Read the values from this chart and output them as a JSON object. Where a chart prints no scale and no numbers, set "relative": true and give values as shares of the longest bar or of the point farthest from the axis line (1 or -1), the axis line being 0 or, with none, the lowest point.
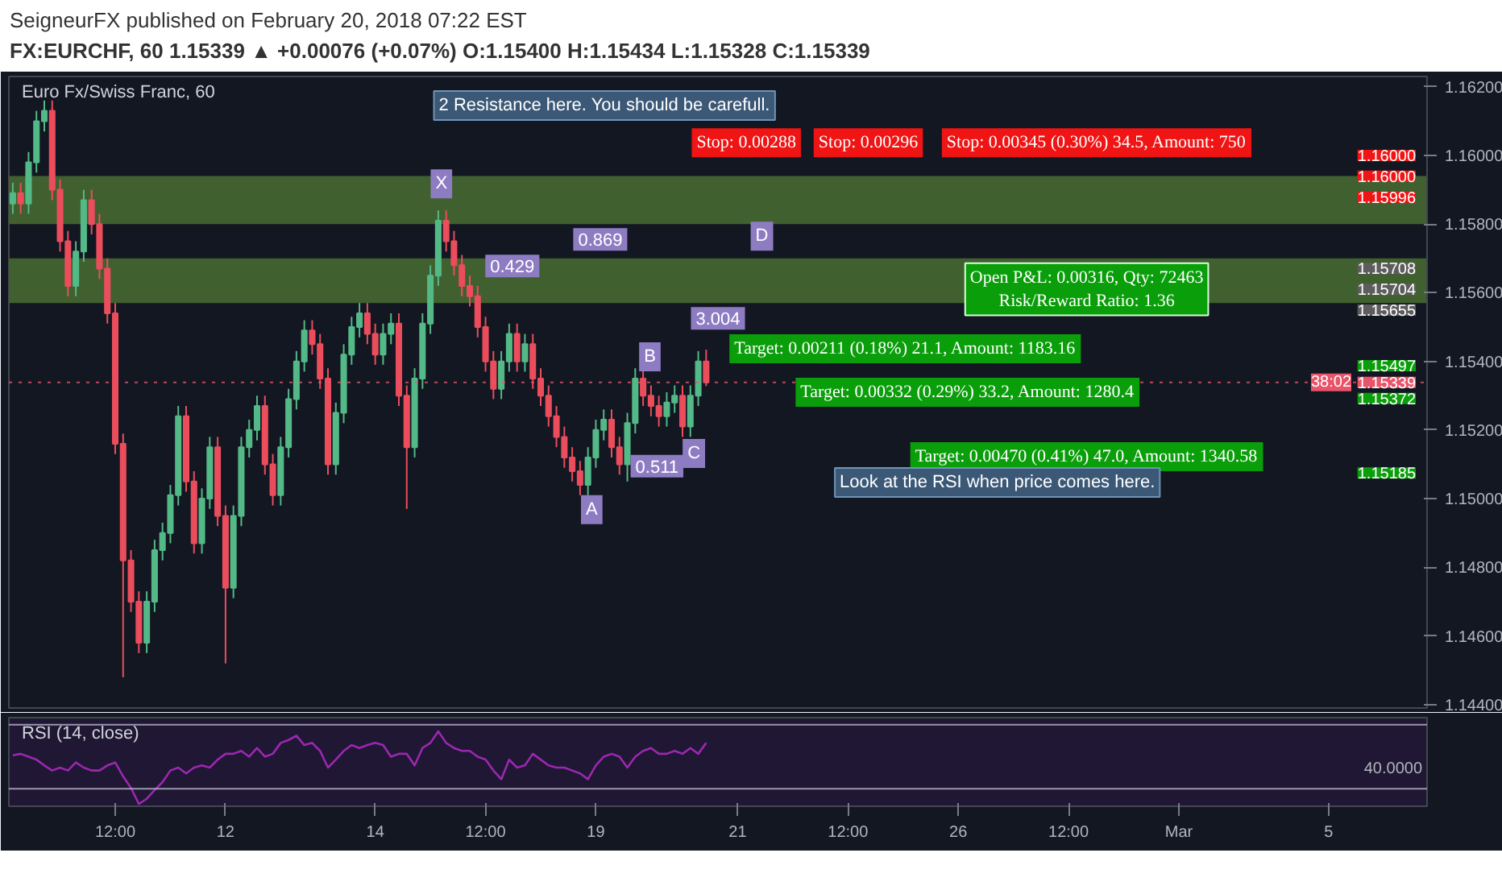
{
  "chart_data": [
    {
      "type": "candlestick",
      "title": "Euro Fx/Swiss Franc, 60",
      "subtitle": "FX:EURCHF, 60 1.15339 ▲ +0.00076 (+0.07%) O:1.15400 H:1.15434 L:1.15328 C:1.15339",
      "categories": [
        null,
        null,
        null,
        null,
        null,
        null,
        null,
        null,
        null,
        null,
        null,
        null,
        null,
        "12:00",
        null,
        null,
        null,
        null,
        null,
        null,
        null,
        null,
        null,
        null,
        null,
        null,
        null,
        "12",
        null,
        null,
        null,
        null,
        null,
        null,
        null,
        null,
        null,
        null,
        null,
        null,
        null,
        null,
        null,
        null,
        null,
        null,
        "14",
        null,
        null,
        null,
        null,
        null,
        null,
        null,
        null,
        null,
        null,
        null,
        null,
        null,
        "12:00",
        null,
        null,
        null,
        null,
        null,
        null,
        null,
        null,
        null,
        null,
        null,
        null,
        null,
        "19",
        null,
        null,
        null,
        null,
        null,
        null,
        null,
        null,
        null,
        null,
        null,
        null,
        null,
        null,
        null,
        null,
        null,
        "21",
        null,
        null,
        null,
        null,
        null,
        null,
        null,
        null,
        null,
        null,
        null,
        null,
        null,
        "12:00",
        null,
        null,
        null,
        null,
        null,
        null,
        null,
        null,
        null,
        null,
        null,
        null,
        null,
        "26",
        null,
        null,
        null,
        null,
        null,
        null,
        null,
        null,
        null,
        null,
        null,
        null,
        null,
        "12:00",
        null,
        null,
        null,
        null,
        null,
        null,
        null,
        null,
        null,
        null,
        null,
        null,
        null,
        "Mar",
        null,
        null,
        null,
        null,
        null,
        null,
        null,
        null,
        null,
        null,
        null,
        null,
        null,
        null,
        null,
        null,
        null,
        null,
        "5",
        null,
        null,
        null,
        null,
        null,
        null,
        null,
        null,
        null,
        null,
        null,
        null
      ],
      "ohlc": [
        [
          1.1586,
          1.1592,
          1.1583,
          1.1589
        ],
        [
          1.1589,
          1.1592,
          1.1583,
          1.1586
        ],
        [
          1.1586,
          1.1601,
          1.1583,
          1.1598
        ],
        [
          1.1598,
          1.1613,
          1.1595,
          1.161
        ],
        [
          1.161,
          1.1616,
          1.1607,
          1.1613
        ],
        [
          1.1613,
          1.1616,
          1.1587,
          1.159
        ],
        [
          1.159,
          1.1593,
          1.1572,
          1.1575
        ],
        [
          1.1575,
          1.1578,
          1.1559,
          1.1562
        ],
        [
          1.1562,
          1.1575,
          1.1559,
          1.1572
        ],
        [
          1.1572,
          1.159,
          1.1569,
          1.1587
        ],
        [
          1.1587,
          1.159,
          1.1577,
          1.158
        ],
        [
          1.158,
          1.1583,
          1.1564,
          1.1567
        ],
        [
          1.1567,
          1.157,
          1.1551,
          1.1554
        ],
        [
          1.1554,
          1.1557,
          1.1513,
          1.1516
        ],
        [
          1.1516,
          1.1519,
          1.1448,
          1.1482
        ],
        [
          1.1482,
          1.1485,
          1.1467,
          1.147
        ],
        [
          1.147,
          1.1473,
          1.1455,
          1.1458
        ],
        [
          1.1458,
          1.1473,
          1.1455,
          1.147
        ],
        [
          1.147,
          1.1488,
          1.1467,
          1.1485
        ],
        [
          1.1485,
          1.1493,
          1.1482,
          1.149
        ],
        [
          1.149,
          1.1504,
          1.1487,
          1.1501
        ],
        [
          1.1501,
          1.1527,
          1.1498,
          1.1524
        ],
        [
          1.1524,
          1.1527,
          1.1502,
          1.1505
        ],
        [
          1.1505,
          1.1508,
          1.1484,
          1.1487
        ],
        [
          1.1487,
          1.1503,
          1.1484,
          1.15
        ],
        [
          1.15,
          1.1518,
          1.1497,
          1.1515
        ],
        [
          1.1515,
          1.1518,
          1.1492,
          1.1495
        ],
        [
          1.1495,
          1.1498,
          1.1452,
          1.1474
        ],
        [
          1.1474,
          1.1498,
          1.1471,
          1.1495
        ],
        [
          1.1495,
          1.1518,
          1.1492,
          1.1515
        ],
        [
          1.1515,
          1.1523,
          1.1512,
          1.152
        ],
        [
          1.152,
          1.153,
          1.1517,
          1.1527
        ],
        [
          1.1527,
          1.153,
          1.1507,
          1.151
        ],
        [
          1.151,
          1.1513,
          1.1498,
          1.1501
        ],
        [
          1.1501,
          1.1518,
          1.1498,
          1.1515
        ],
        [
          1.1515,
          1.1532,
          1.1512,
          1.1529
        ],
        [
          1.1529,
          1.1543,
          1.1526,
          1.154
        ],
        [
          1.154,
          1.1552,
          1.1537,
          1.1549
        ],
        [
          1.1549,
          1.1552,
          1.1542,
          1.1545
        ],
        [
          1.1545,
          1.1548,
          1.1532,
          1.1535
        ],
        [
          1.1535,
          1.1538,
          1.1507,
          1.151
        ],
        [
          1.151,
          1.1528,
          1.1507,
          1.1525
        ],
        [
          1.1525,
          1.1545,
          1.1522,
          1.1542
        ],
        [
          1.1542,
          1.1553,
          1.1539,
          1.155
        ],
        [
          1.155,
          1.1557,
          1.1547,
          1.1554
        ],
        [
          1.1554,
          1.1557,
          1.1545,
          1.1548
        ],
        [
          1.1548,
          1.1551,
          1.1539,
          1.1542
        ],
        [
          1.1542,
          1.1551,
          1.1539,
          1.1548
        ],
        [
          1.1548,
          1.1554,
          1.1545,
          1.1551
        ],
        [
          1.1551,
          1.1554,
          1.1527,
          1.153
        ],
        [
          1.153,
          1.1533,
          1.1497,
          1.1515
        ],
        [
          1.1515,
          1.1538,
          1.1512,
          1.1535
        ],
        [
          1.1535,
          1.1554,
          1.1532,
          1.1551
        ],
        [
          1.1551,
          1.1568,
          1.1548,
          1.1565
        ],
        [
          1.1565,
          1.1584,
          1.1562,
          1.1581
        ],
        [
          1.1581,
          1.1584,
          1.1572,
          1.1575
        ],
        [
          1.1575,
          1.1578,
          1.1565,
          1.1568
        ],
        [
          1.1568,
          1.1571,
          1.1559,
          1.1562
        ],
        [
          1.1562,
          1.1565,
          1.1556,
          1.1559
        ],
        [
          1.1559,
          1.1562,
          1.1547,
          1.155
        ],
        [
          1.155,
          1.1553,
          1.1537,
          1.154
        ],
        [
          1.154,
          1.1543,
          1.1529,
          1.1532
        ],
        [
          1.1532,
          1.1543,
          1.1529,
          1.154
        ],
        [
          1.154,
          1.1551,
          1.1537,
          1.1548
        ],
        [
          1.1548,
          1.1551,
          1.1537,
          1.154
        ],
        [
          1.154,
          1.1548,
          1.1537,
          1.1545
        ],
        [
          1.1545,
          1.1548,
          1.1532,
          1.1535
        ],
        [
          1.1535,
          1.1538,
          1.1527,
          1.153
        ],
        [
          1.153,
          1.1533,
          1.1521,
          1.1524
        ],
        [
          1.1524,
          1.1527,
          1.1515,
          1.1518
        ],
        [
          1.1518,
          1.1521,
          1.1509,
          1.1512
        ],
        [
          1.1512,
          1.1515,
          1.1505,
          1.1508
        ],
        [
          1.1508,
          1.1511,
          1.1501,
          1.1504
        ],
        [
          1.1504,
          1.1515,
          1.1501,
          1.1512
        ],
        [
          1.1512,
          1.1523,
          1.1509,
          1.152
        ],
        [
          1.152,
          1.1526,
          1.1517,
          1.1523
        ],
        [
          1.1523,
          1.1526,
          1.1512,
          1.1515
        ],
        [
          1.1515,
          1.1518,
          1.1507,
          1.151
        ],
        [
          1.151,
          1.1525,
          1.1505,
          1.1522
        ],
        [
          1.1522,
          1.1538,
          1.1519,
          1.1535
        ],
        [
          1.1535,
          1.1538,
          1.1527,
          1.153
        ],
        [
          1.153,
          1.1533,
          1.1524,
          1.1527
        ],
        [
          1.1527,
          1.153,
          1.1521,
          1.1524
        ],
        [
          1.1524,
          1.1531,
          1.1521,
          1.1528
        ],
        [
          1.1528,
          1.1533,
          1.1525,
          1.153
        ],
        [
          1.153,
          1.1533,
          1.1518,
          1.1521
        ],
        [
          1.1521,
          1.1533,
          1.1518,
          1.153
        ],
        [
          1.153,
          1.1543,
          1.1527,
          1.154
        ],
        [
          1.154,
          1.15434,
          1.15328,
          1.15339
        ],
        null,
        null,
        null,
        null,
        null,
        null,
        null,
        null,
        null,
        null,
        null,
        null,
        null,
        null,
        null,
        null,
        null,
        null,
        null,
        null,
        null,
        null,
        null,
        null,
        null,
        null,
        null,
        null,
        null,
        null,
        null,
        null,
        null,
        null,
        null,
        null,
        null,
        null,
        null,
        null,
        null,
        null,
        null,
        null,
        null,
        null,
        null,
        null,
        null,
        null,
        null,
        null,
        null,
        null,
        null,
        null,
        null,
        null,
        null,
        null,
        null,
        null,
        null,
        null,
        null,
        null,
        null,
        null,
        null,
        null,
        null,
        null,
        null,
        null,
        null,
        null,
        null,
        null,
        null,
        null,
        null,
        null,
        null,
        null,
        null,
        null,
        null,
        null,
        null,
        null,
        null
      ],
      "colors": [
        "#53b987",
        "#eb4d5c",
        "#53b987",
        "#53b987",
        "#53b987",
        "#eb4d5c",
        "#eb4d5c",
        "#eb4d5c",
        "#53b987",
        "#53b987",
        "#eb4d5c",
        "#eb4d5c",
        "#eb4d5c",
        "#eb4d5c",
        "#eb4d5c",
        "#eb4d5c",
        "#eb4d5c",
        "#53b987",
        "#53b987",
        "#53b987",
        "#53b987",
        "#53b987",
        "#eb4d5c",
        "#eb4d5c",
        "#53b987",
        "#53b987",
        "#eb4d5c",
        "#eb4d5c",
        "#53b987",
        "#53b987",
        "#53b987",
        "#53b987",
        "#eb4d5c",
        "#eb4d5c",
        "#53b987",
        "#53b987",
        "#53b987",
        "#53b987",
        "#eb4d5c",
        "#eb4d5c",
        "#eb4d5c",
        "#53b987",
        "#53b987",
        "#53b987",
        "#53b987",
        "#eb4d5c",
        "#eb4d5c",
        "#53b987",
        "#53b987",
        "#eb4d5c",
        "#eb4d5c",
        "#53b987",
        "#53b987",
        "#53b987",
        "#53b987",
        "#eb4d5c",
        "#eb4d5c",
        "#eb4d5c",
        "#eb4d5c",
        "#eb4d5c",
        "#eb4d5c",
        "#eb4d5c",
        "#53b987",
        "#53b987",
        "#eb4d5c",
        "#53b987",
        "#eb4d5c",
        "#eb4d5c",
        "#eb4d5c",
        "#eb4d5c",
        "#eb4d5c",
        "#eb4d5c",
        "#eb4d5c",
        "#53b987",
        "#53b987",
        "#53b987",
        "#eb4d5c",
        "#eb4d5c",
        "#53b987",
        "#53b987",
        "#eb4d5c",
        "#eb4d5c",
        "#eb4d5c",
        "#53b987",
        "#53b987",
        "#eb4d5c",
        "#53b987",
        "#53b987",
        "#eb4d5c",
        null,
        null,
        null,
        null,
        null,
        null,
        null,
        null,
        null,
        null,
        null,
        null,
        null,
        null,
        null,
        null,
        null,
        null,
        null,
        null,
        null,
        null,
        null,
        null,
        null,
        null,
        null,
        null,
        null,
        null,
        null,
        null,
        null,
        null,
        null,
        null,
        null,
        null,
        null,
        null,
        null,
        null,
        null,
        null,
        null,
        null,
        null,
        null,
        null,
        null,
        null,
        null,
        null,
        null,
        null,
        null,
        null,
        null,
        null,
        null,
        null,
        null,
        null,
        null,
        null,
        null,
        null,
        null,
        null,
        null,
        null,
        null,
        null,
        null,
        null,
        null,
        null,
        null,
        null,
        null,
        null,
        null,
        null,
        null,
        null,
        null,
        null,
        null,
        null,
        null,
        null
      ],
      "ylim": [
        1.1439,
        1.1623
      ],
      "yticks": [
        {
          "value": 1.144,
          "label": "1.14400"
        },
        {
          "value": 1.146,
          "label": "1.14600"
        },
        {
          "value": 1.148,
          "label": "1.14800"
        },
        {
          "value": 1.15,
          "label": "1.15000"
        },
        {
          "value": 1.152,
          "label": "1.15200"
        },
        {
          "value": 1.154,
          "label": "1.15400"
        },
        {
          "value": 1.156,
          "label": "1.15600"
        },
        {
          "value": 1.158,
          "label": "1.15800"
        },
        {
          "value": 1.16,
          "label": "1.16000"
        },
        {
          "value": 1.162,
          "label": "1.16200"
        }
      ],
      "tick_labels": "y",
      "grid": false,
      "bands": [
        {
          "axis": "y",
          "from": 1.158,
          "to": 1.1594,
          "color": "#41602f"
        },
        {
          "axis": "y",
          "from": 1.1557,
          "to": 1.157,
          "color": "#41602f"
        }
      ],
      "ref_lines": [
        {
          "axis": "y",
          "value": 1.15339,
          "label": "1.15339",
          "color": "#e8546a",
          "line_style": "dotted"
        }
      ],
      "annotations": [
        "SeigneurFX published on February 20, 2018 07:22 EST",
        "38:02",
        "2 Resistance here. You should be carefull.",
        "Stop: 0.00288",
        "Stop: 0.00296",
        "Stop: 0.00345 (0.30%) 34.5, Amount: 750",
        "X",
        "A",
        "B",
        "C",
        "D",
        "0.869",
        "0.429",
        "0.511",
        "3.004",
        "Open P&L: 0.00316, Qty: 72463\nRisk/Reward Ratio: 1.36",
        "Target: 0.00211 (0.18%) 21.1, Amount: 1183.16",
        "Target: 0.00332 (0.29%) 33.2, Amount: 1280.4",
        "Target: 0.00470 (0.41%) 47.0, Amount: 1340.58",
        "Look at the RSI when price comes here.",
        "1.16000",
        "1.16000",
        "1.15996",
        "1.15708",
        "1.15704",
        "1.15655",
        "1.15497",
        "1.15372",
        "1.15185"
      ]
    },
    {
      "type": "line",
      "title": "RSI (14, close)",
      "relative": true,
      "tick_labels": "x",
      "series": [
        {
          "color": "#9c27b0",
          "values": [
            0.67,
            0.69,
            0.65,
            0.61,
            0.53,
            0.46,
            0.5,
            0.46,
            0.57,
            0.5,
            0.46,
            0.46,
            0.53,
            0.57,
            0.38,
            0.22,
            0,
            0.07,
            0.19,
            0.3,
            0.46,
            0.5,
            0.42,
            0.5,
            0.53,
            0.5,
            0.61,
            0.69,
            0.69,
            0.73,
            0.65,
            0.77,
            0.65,
            0.69,
            0.84,
            0.88,
            0.94,
            0.81,
            0.84,
            0.73,
            0.5,
            0.61,
            0.73,
            0.81,
            0.77,
            0.81,
            0.84,
            0.81,
            0.65,
            0.69,
            0.69,
            0.53,
            0.77,
            0.84,
            1,
            0.84,
            0.77,
            0.73,
            0.73,
            0.65,
            0.61,
            0.46,
            0.34,
            0.61,
            0.5,
            0.53,
            0.69,
            0.61,
            0.53,
            0.5,
            0.5,
            0.46,
            0.42,
            0.34,
            0.53,
            0.65,
            0.69,
            0.65,
            0.5,
            0.65,
            0.73,
            0.77,
            0.69,
            0.69,
            0.73,
            0.69,
            0.77,
            0.69,
            0.84,
            null,
            null,
            null,
            null,
            null,
            null,
            null,
            null,
            null,
            null,
            null,
            null,
            null,
            null,
            null,
            null,
            null,
            null,
            null,
            null,
            null,
            null,
            null,
            null,
            null,
            null,
            null,
            null,
            null,
            null,
            null,
            null,
            null,
            null,
            null,
            null,
            null,
            null,
            null,
            null,
            null,
            null,
            null,
            null,
            null,
            null,
            null,
            null,
            null,
            null,
            null,
            null,
            null,
            null,
            null,
            null,
            null,
            null,
            null,
            null,
            null,
            null,
            null,
            null,
            null,
            null,
            null,
            null,
            null,
            null,
            null,
            null,
            null,
            null,
            null,
            null,
            null,
            null,
            null,
            null,
            null,
            null,
            null,
            null,
            null,
            null,
            null,
            null,
            null,
            null,
            null
          ]
        }
      ],
      "grid": false,
      "ref_lines": [
        {
          "axis": "y",
          "value": 1.09,
          "color": "#b8b8c8",
          "line_style": "solid"
        },
        {
          "axis": "y",
          "value": 0.21,
          "color": "#b8b8c8",
          "line_style": "solid"
        }
      ],
      "annotations": [
        "40.0000"
      ]
    }
  ]
}
